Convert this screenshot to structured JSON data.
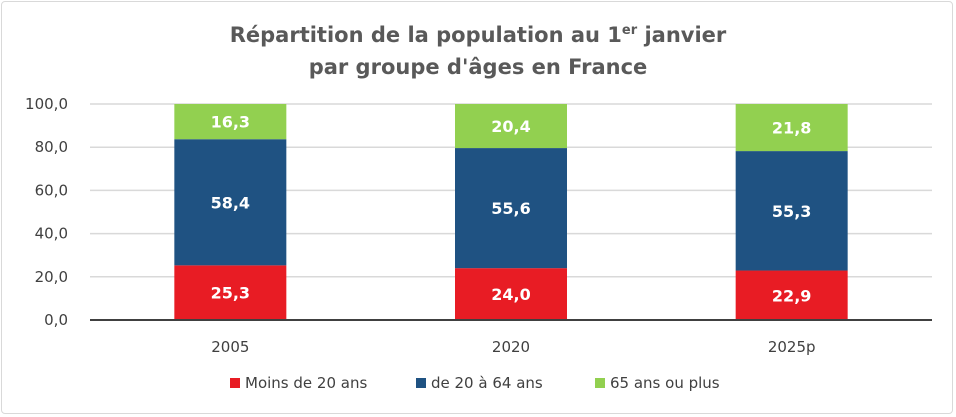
{
  "chart_data": {
    "type": "bar",
    "stacked": true,
    "title_line1_pre": "Répartition de la population au 1",
    "title_sup": "er",
    "title_line1_post": " janvier",
    "title_line2": "par groupe d'âges en France",
    "categories": [
      "2005",
      "2020",
      "2025p"
    ],
    "series": [
      {
        "name": "Moins de 20 ans",
        "color": "#e81c24",
        "values": [
          25.3,
          24.0,
          22.9
        ],
        "labels": [
          "25,3",
          "24,0",
          "22,9"
        ]
      },
      {
        "name": "de 20 à 64 ans",
        "color": "#1f5282",
        "values": [
          58.4,
          55.6,
          55.3
        ],
        "labels": [
          "58,4",
          "55,6",
          "55,3"
        ]
      },
      {
        "name": "65 ans ou plus",
        "color": "#92d050",
        "values": [
          16.3,
          20.4,
          21.8
        ],
        "labels": [
          "16,3",
          "20,4",
          "21,8"
        ]
      }
    ],
    "ylim": [
      0,
      100
    ],
    "yticks": [
      "0,0",
      "20,0",
      "40,0",
      "60,0",
      "80,0",
      "100,0"
    ],
    "grid": true,
    "legend": "bottom"
  }
}
